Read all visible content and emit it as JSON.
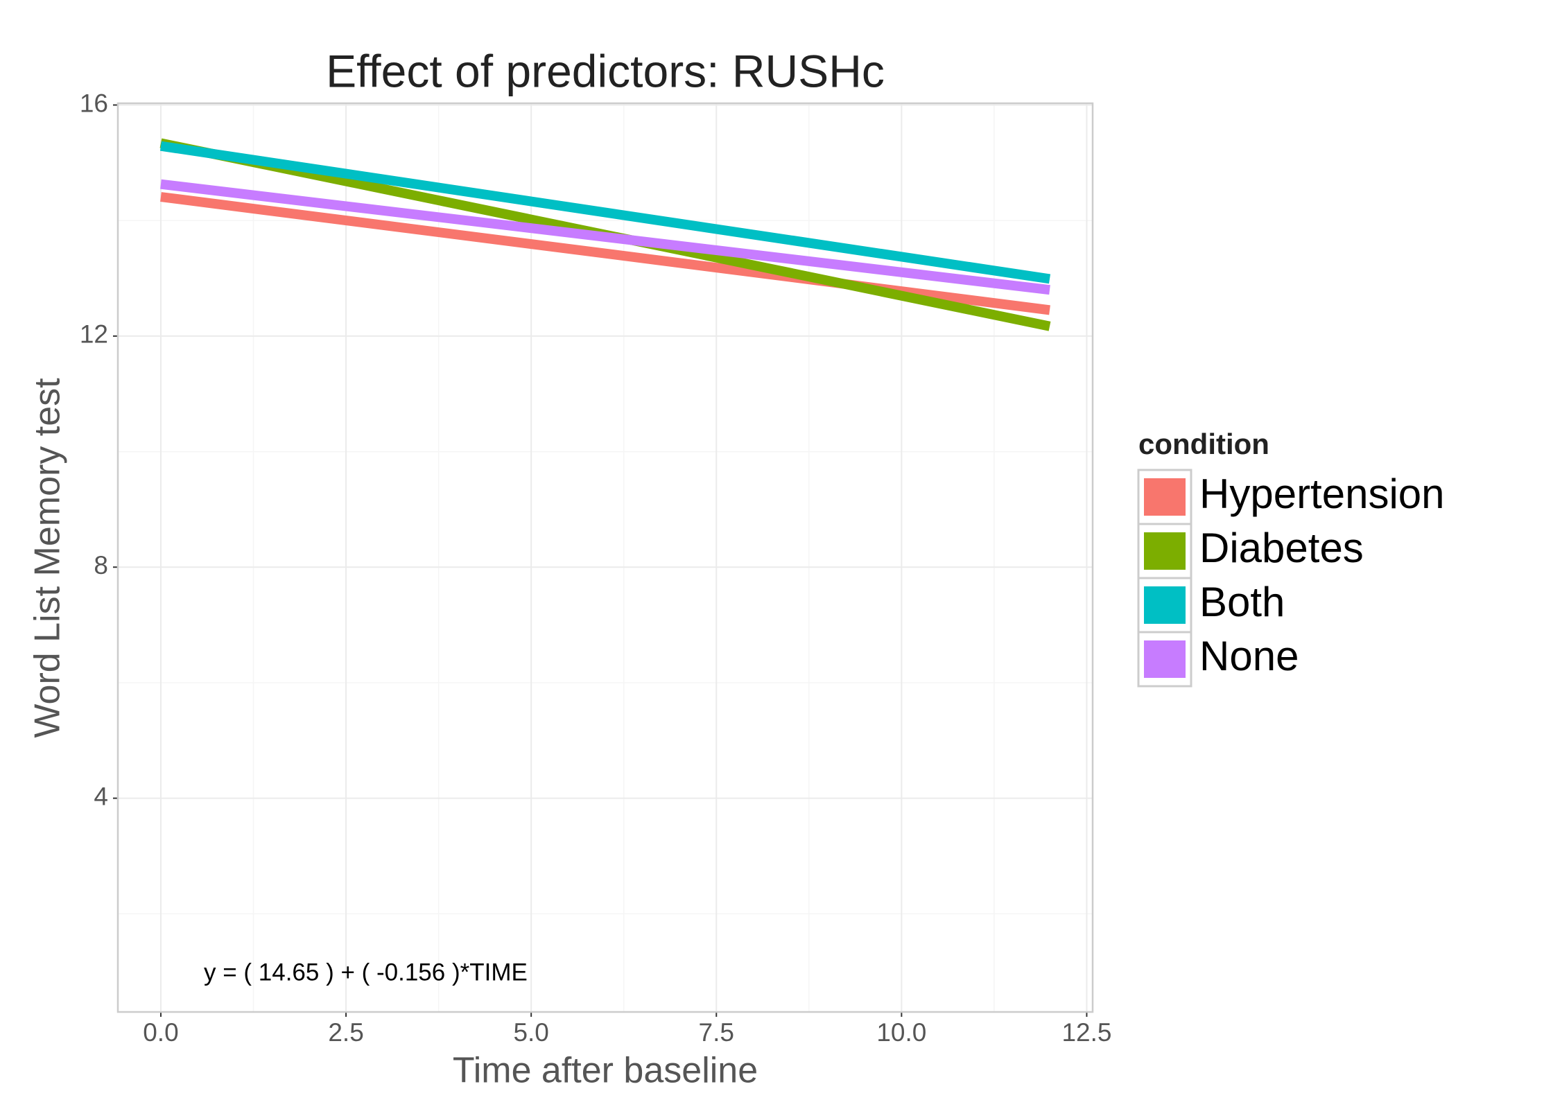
{
  "chart_data": {
    "type": "line",
    "title": "Effect of predictors: RUSHc",
    "x_label": "Time after baseline",
    "y_label": "Word List Memory test",
    "annotation": "y = ( 14.65 ) + ( -0.156 )*TIME",
    "legend_title": "condition",
    "legend_position": "right",
    "grid": true,
    "x": [
      0,
      12
    ],
    "series": [
      {
        "name": "Hypertension",
        "color": "#f8766d",
        "values": [
          14.41,
          12.45
        ]
      },
      {
        "name": "Diabetes",
        "color": "#7cae00",
        "values": [
          15.34,
          12.17
        ]
      },
      {
        "name": "Both",
        "color": "#00bfc4",
        "values": [
          15.29,
          12.99
        ]
      },
      {
        "name": "None",
        "color": "#c77cff",
        "values": [
          14.63,
          12.8
        ]
      }
    ],
    "xlim": [
      -0.58,
      12.58
    ],
    "xticks": [
      {
        "value": 0,
        "label": "0.0"
      },
      2.5,
      {
        "value": 5,
        "label": "5.0"
      },
      7.5,
      {
        "value": 10,
        "label": "10.0"
      },
      12.5
    ],
    "ylim": [
      0.3,
      16.03
    ],
    "yticks": [
      4,
      8,
      12,
      16
    ]
  }
}
